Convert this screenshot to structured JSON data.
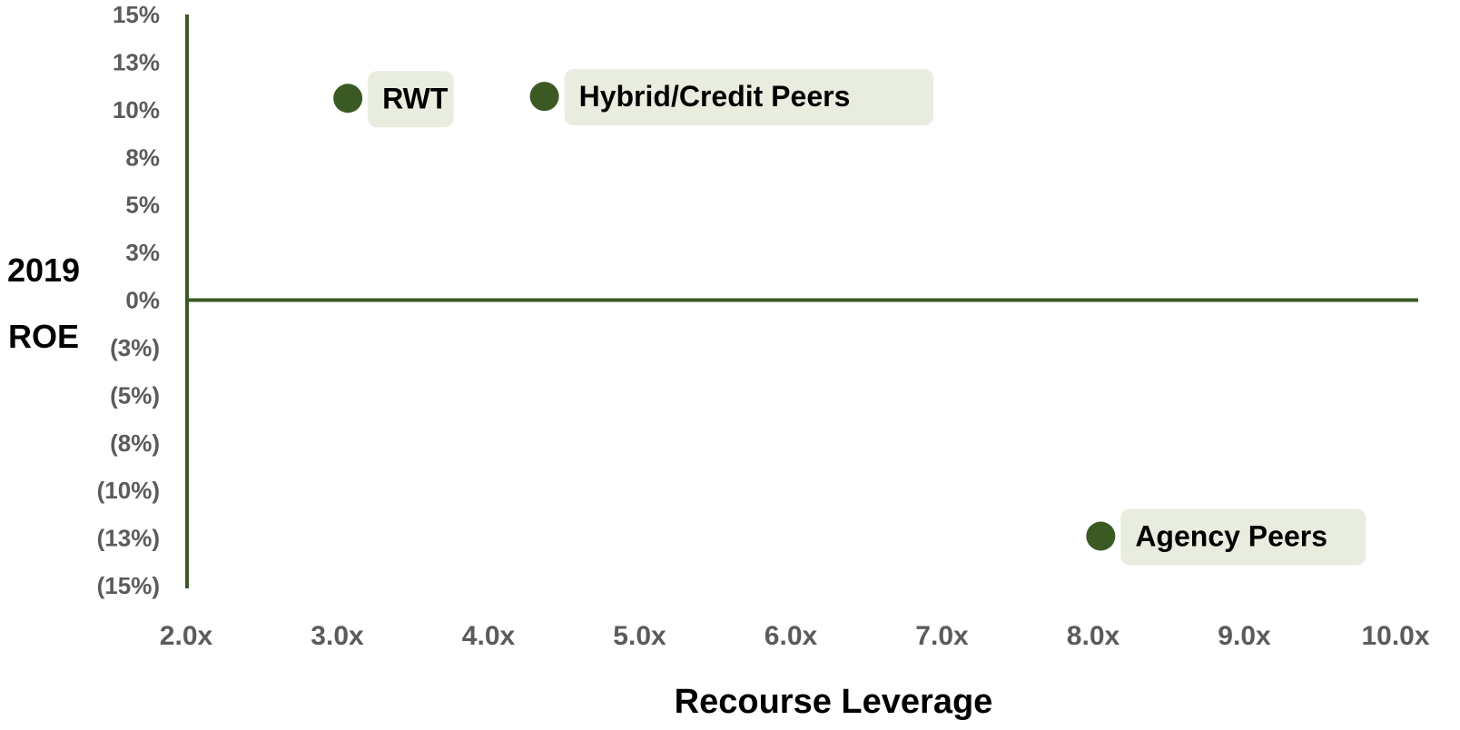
{
  "chart_data": {
    "type": "scatter",
    "title": "",
    "xlabel": "Recourse Leverage",
    "ylabel_lines": [
      "2019",
      "ROE"
    ],
    "xlim": [
      2.0,
      10.0
    ],
    "ylim": [
      -15,
      15
    ],
    "x_ticks": [
      {
        "value": 2.0,
        "label": "2.0x"
      },
      {
        "value": 3.0,
        "label": "3.0x"
      },
      {
        "value": 4.0,
        "label": "4.0x"
      },
      {
        "value": 5.0,
        "label": "5.0x"
      },
      {
        "value": 6.0,
        "label": "6.0x"
      },
      {
        "value": 7.0,
        "label": "7.0x"
      },
      {
        "value": 8.0,
        "label": "8.0x"
      },
      {
        "value": 9.0,
        "label": "9.0x"
      },
      {
        "value": 10.0,
        "label": "10.0x"
      }
    ],
    "y_ticks": [
      {
        "value": 15,
        "label": "15%"
      },
      {
        "value": 12.5,
        "label": "13%"
      },
      {
        "value": 10,
        "label": "10%"
      },
      {
        "value": 7.5,
        "label": "8%"
      },
      {
        "value": 5,
        "label": "5%"
      },
      {
        "value": 2.5,
        "label": "3%"
      },
      {
        "value": 0,
        "label": "0%"
      },
      {
        "value": -2.5,
        "label": "(3%)"
      },
      {
        "value": -5,
        "label": "(5%)"
      },
      {
        "value": -7.5,
        "label": "(8%)"
      },
      {
        "value": -10,
        "label": "(10%)"
      },
      {
        "value": -12.5,
        "label": "(13%)"
      },
      {
        "value": -15,
        "label": "(15%)"
      }
    ],
    "points": [
      {
        "label": "RWT",
        "x": 3.07,
        "y": 10.6
      },
      {
        "label": "Hybrid/Credit Peers",
        "x": 4.37,
        "y": 10.7
      },
      {
        "label": "Agency Peers",
        "x": 8.05,
        "y": -12.4
      }
    ],
    "grid": false,
    "legend": "none"
  },
  "colors": {
    "axis": "#3b5a23",
    "marker": "#3b5a23",
    "label_bg": "#e9eddf",
    "tick_text": "#5b5b5b",
    "title_text": "#000000"
  }
}
